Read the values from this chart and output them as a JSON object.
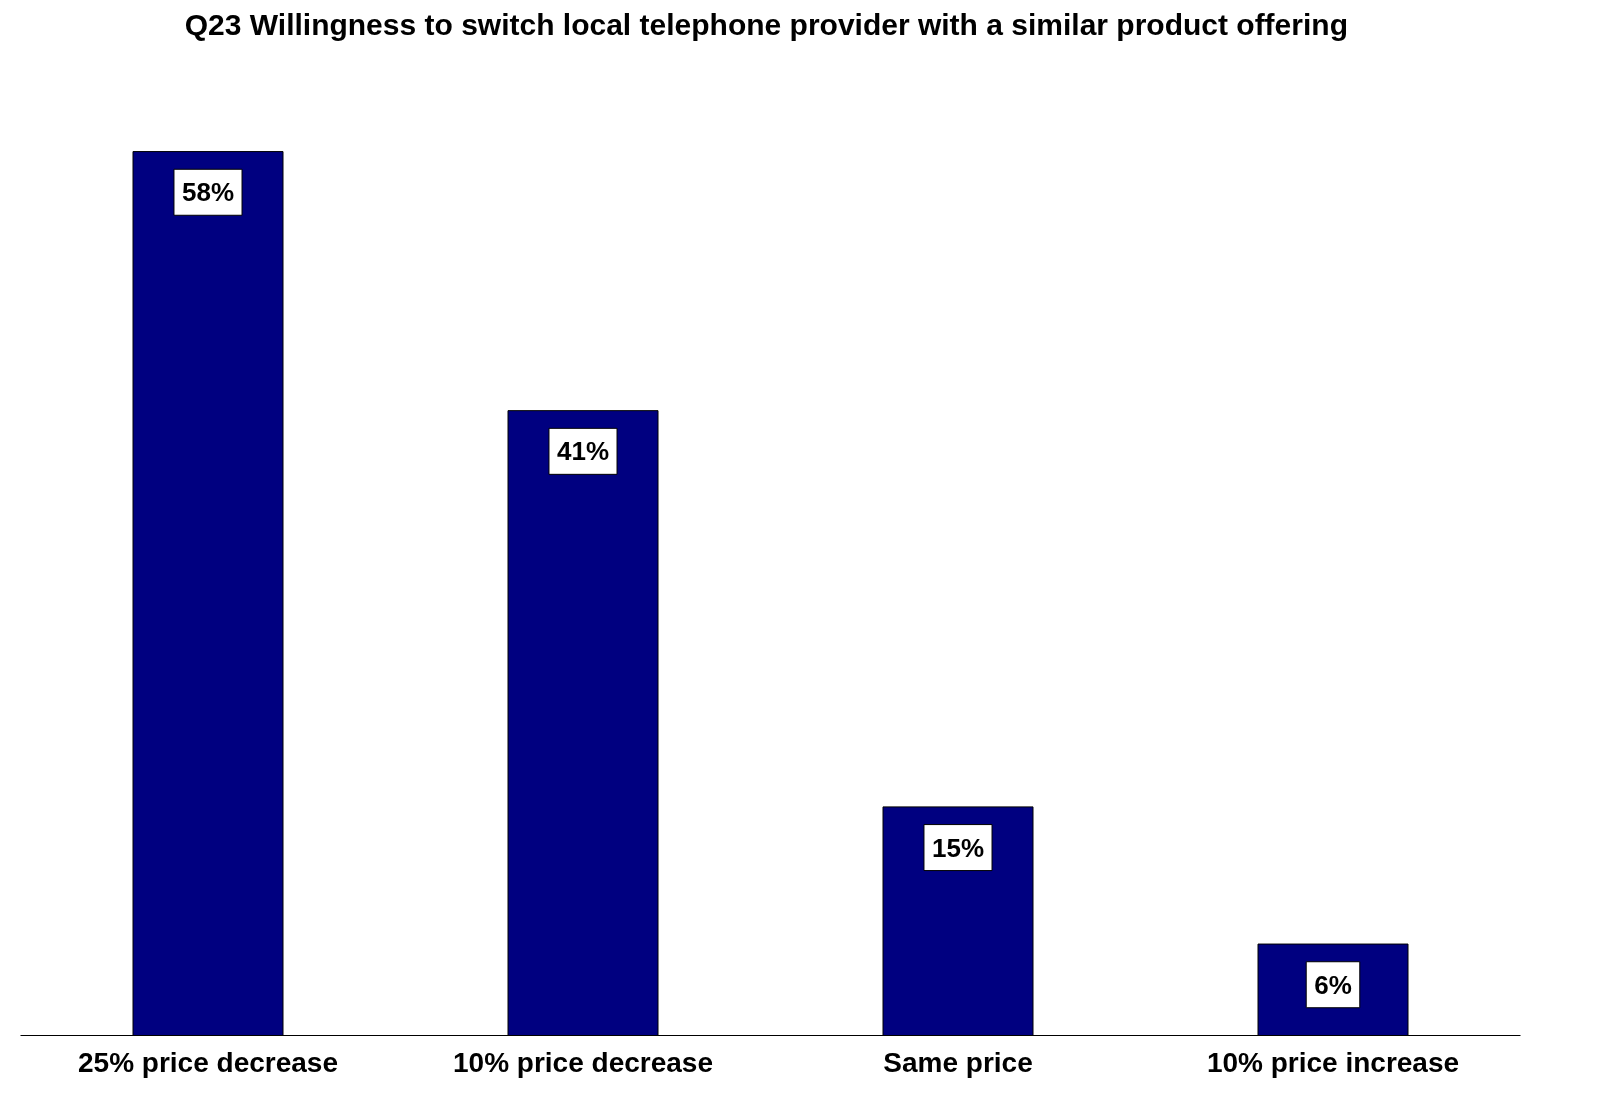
{
  "chart_data": {
    "type": "bar",
    "title": "Q23  Willingness to switch local telephone provider with a similar product offering",
    "categories": [
      "25% price decrease",
      "10% price decrease",
      "Same price",
      "10% price increase"
    ],
    "values": [
      58,
      41,
      15,
      6
    ],
    "value_labels": [
      "58%",
      "41%",
      "15%",
      "6%"
    ],
    "color": "#000080",
    "grid": false
  }
}
